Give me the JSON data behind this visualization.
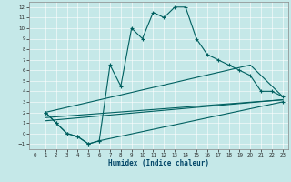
{
  "xlabel": "Humidex (Indice chaleur)",
  "background_color": "#c5e8e8",
  "line_color": "#006060",
  "xlim": [
    -0.5,
    23.5
  ],
  "ylim": [
    -1.5,
    12.5
  ],
  "xticks": [
    0,
    1,
    2,
    3,
    4,
    5,
    6,
    7,
    8,
    9,
    10,
    11,
    12,
    13,
    14,
    15,
    16,
    17,
    18,
    19,
    20,
    21,
    22,
    23
  ],
  "yticks": [
    -1,
    0,
    1,
    2,
    3,
    4,
    5,
    6,
    7,
    8,
    9,
    10,
    11,
    12
  ],
  "main_x": [
    1,
    2,
    3,
    4,
    5,
    6,
    7,
    8,
    9,
    10,
    11,
    12,
    13,
    14,
    15,
    16,
    17,
    18,
    19,
    20,
    21,
    22,
    23
  ],
  "main_y": [
    2,
    1,
    0,
    -0.3,
    -1.0,
    -0.7,
    6.5,
    4.5,
    10,
    9.0,
    11.5,
    11,
    12,
    12,
    9,
    7.5,
    7,
    6.5,
    6,
    5.5,
    4.0,
    4.0,
    3.5
  ],
  "curve2_x": [
    1,
    2,
    3,
    4,
    5,
    6,
    23
  ],
  "curve2_y": [
    2,
    1,
    0,
    -0.3,
    -1.0,
    -0.7,
    3.0
  ],
  "line3_x": [
    1,
    20,
    23
  ],
  "line3_y": [
    2,
    6.5,
    3.5
  ],
  "line4_x": [
    1,
    23
  ],
  "line4_y": [
    1.5,
    3.2
  ],
  "line5_x": [
    1,
    23
  ],
  "line5_y": [
    1.2,
    3.2
  ]
}
